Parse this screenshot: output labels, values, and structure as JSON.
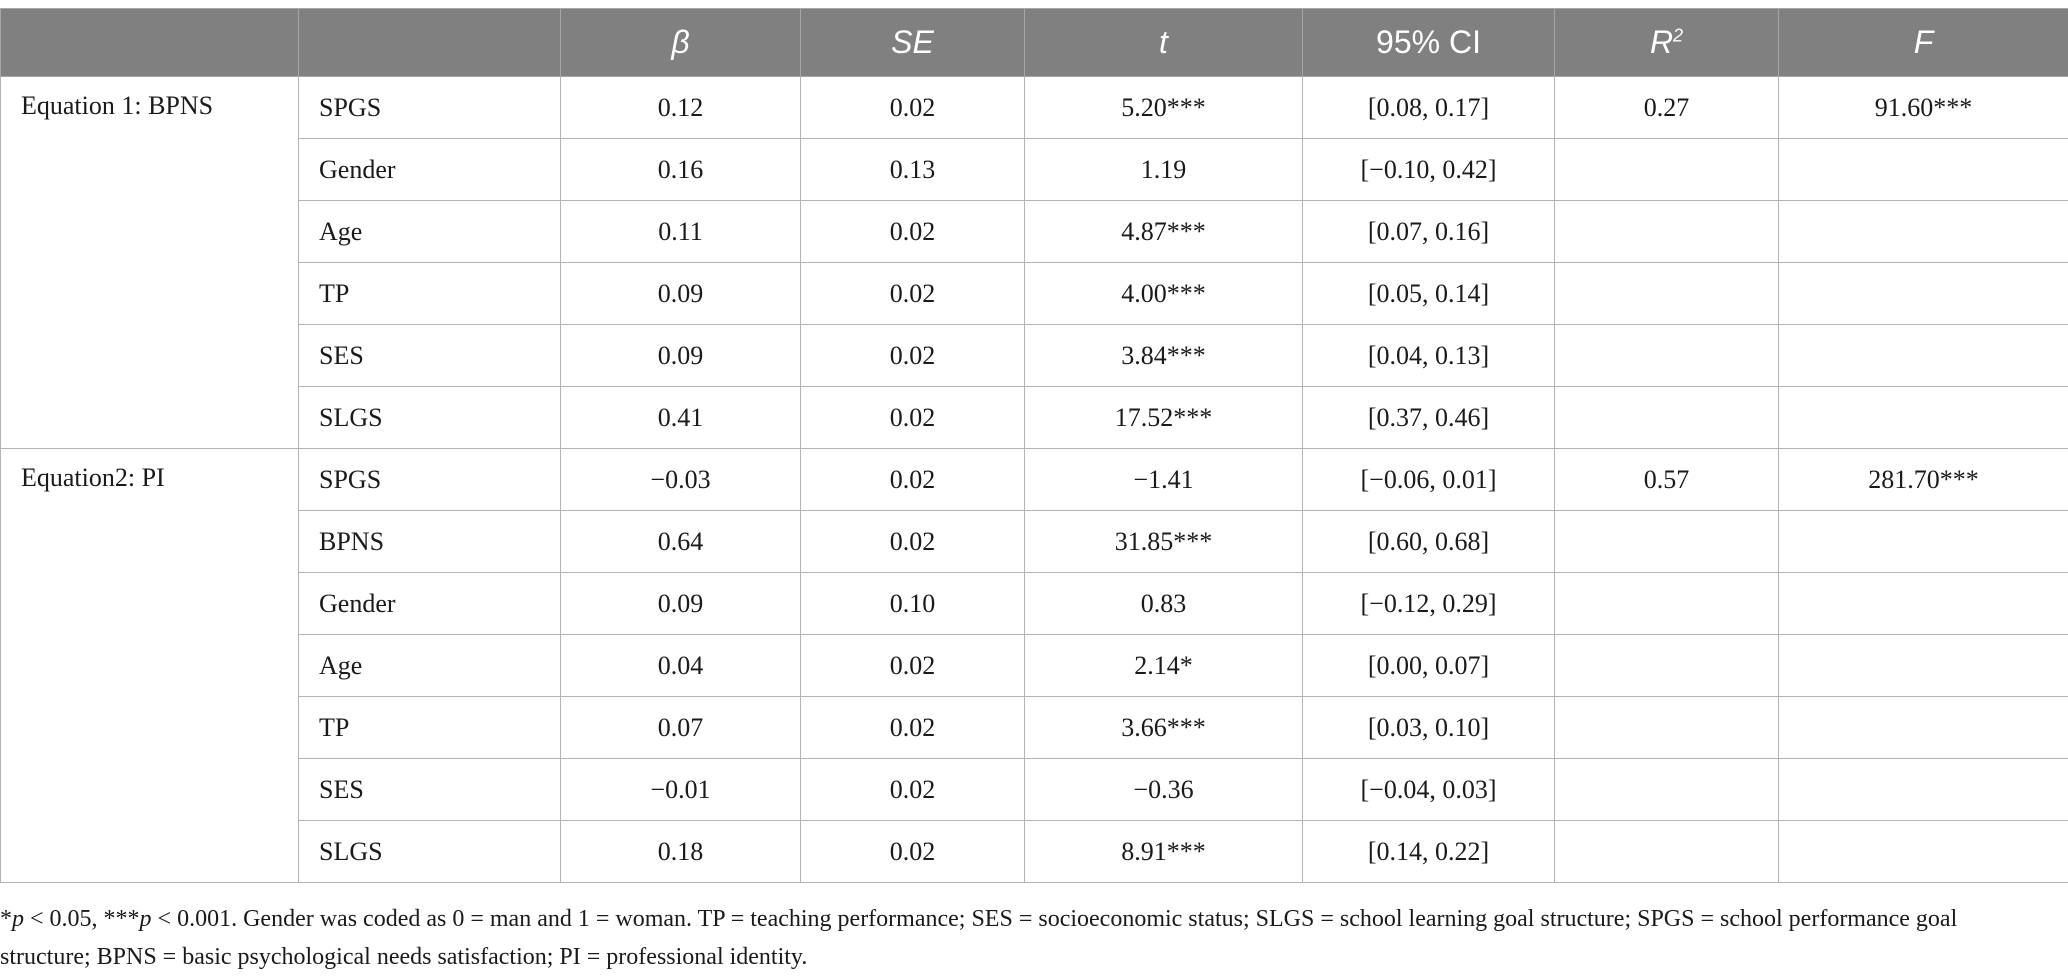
{
  "table": {
    "headers": [
      "",
      "",
      "β",
      "SE",
      "t",
      "95% CI",
      "R",
      "F"
    ],
    "r2_superscript": "2",
    "groups": [
      {
        "label": "Equation 1: BPNS",
        "r2": "0.27",
        "f": "91.60***",
        "rows": [
          {
            "var": "SPGS",
            "beta": "0.12",
            "se": "0.02",
            "t": "5.20***",
            "ci": "[0.08, 0.17]"
          },
          {
            "var": "Gender",
            "beta": "0.16",
            "se": "0.13",
            "t": "1.19",
            "ci": "[−0.10, 0.42]"
          },
          {
            "var": "Age",
            "beta": "0.11",
            "se": "0.02",
            "t": "4.87***",
            "ci": "[0.07, 0.16]"
          },
          {
            "var": "TP",
            "beta": "0.09",
            "se": "0.02",
            "t": "4.00***",
            "ci": "[0.05, 0.14]"
          },
          {
            "var": "SES",
            "beta": "0.09",
            "se": "0.02",
            "t": "3.84***",
            "ci": "[0.04, 0.13]"
          },
          {
            "var": "SLGS",
            "beta": "0.41",
            "se": "0.02",
            "t": "17.52***",
            "ci": "[0.37, 0.46]"
          }
        ]
      },
      {
        "label": "Equation2: PI",
        "r2": "0.57",
        "f": "281.70***",
        "rows": [
          {
            "var": "SPGS",
            "beta": "−0.03",
            "se": "0.02",
            "t": "−1.41",
            "ci": "[−0.06, 0.01]"
          },
          {
            "var": "BPNS",
            "beta": "0.64",
            "se": "0.02",
            "t": "31.85***",
            "ci": "[0.60, 0.68]"
          },
          {
            "var": "Gender",
            "beta": "0.09",
            "se": "0.10",
            "t": "0.83",
            "ci": "[−0.12, 0.29]"
          },
          {
            "var": "Age",
            "beta": "0.04",
            "se": "0.02",
            "t": "2.14*",
            "ci": "[0.00, 0.07]"
          },
          {
            "var": "TP",
            "beta": "0.07",
            "se": "0.02",
            "t": "3.66***",
            "ci": "[0.03, 0.10]"
          },
          {
            "var": "SES",
            "beta": "−0.01",
            "se": "0.02",
            "t": "−0.36",
            "ci": "[−0.04, 0.03]"
          },
          {
            "var": "SLGS",
            "beta": "0.18",
            "se": "0.02",
            "t": "8.91***",
            "ci": "[0.14, 0.22]"
          }
        ]
      }
    ]
  },
  "note": {
    "sig1_prefix": "*",
    "sig1_p": "p",
    "sig1_rest": " < 0.05, ***",
    "sig2_p": "p",
    "text": " < 0.001. Gender was coded as 0 = man and 1 = woman. TP = teaching performance; SES = socioeconomic status; SLGS = school learning goal structure; SPGS = school performance goal structure; BPNS = basic psychological needs satisfaction; PI = professional identity."
  }
}
